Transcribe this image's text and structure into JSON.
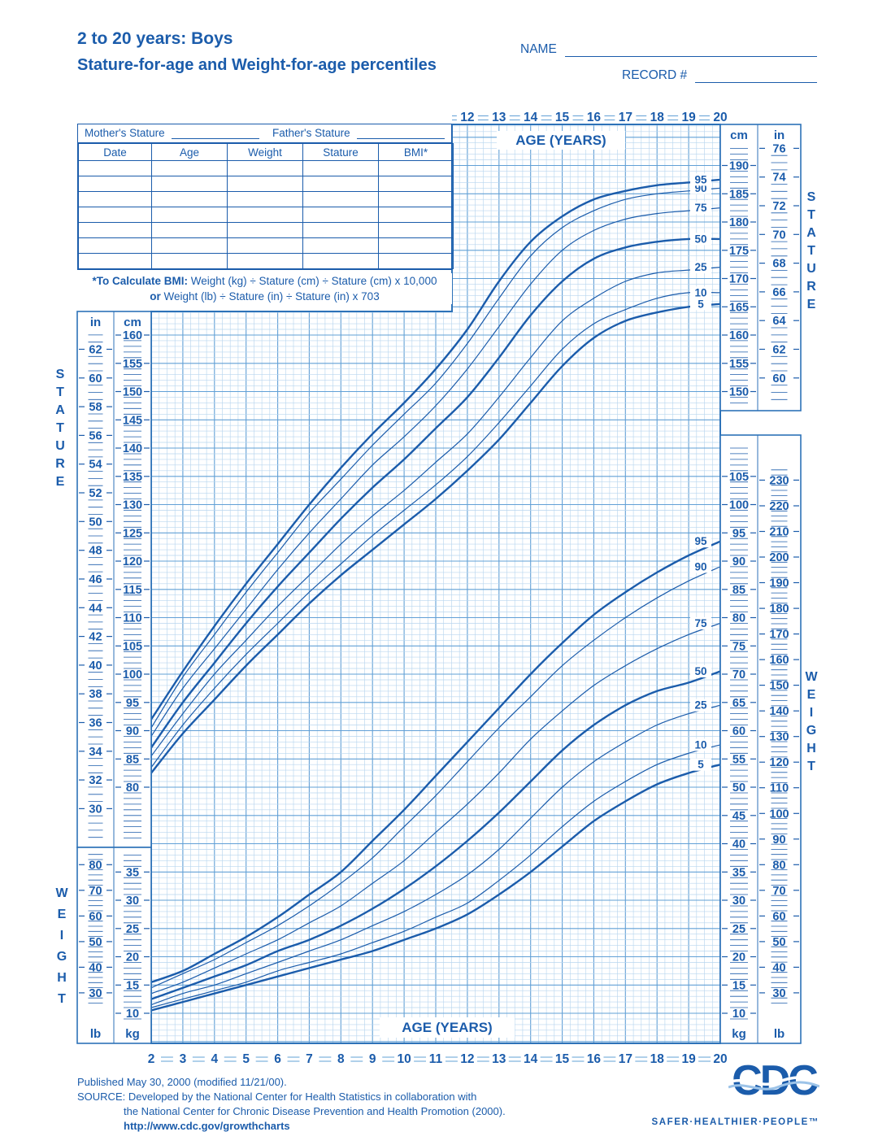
{
  "header": {
    "title_line1": "2 to 20 years: Boys",
    "title_line2": "Stature-for-age and Weight-for-age percentiles",
    "name_label": "NAME",
    "name_value": "",
    "record_label": "RECORD #",
    "record_value": ""
  },
  "patient_table": {
    "mother_stature_label": "Mother's Stature",
    "mother_stature_value": "",
    "father_stature_label": "Father's Stature",
    "father_stature_value": "",
    "columns": [
      "Date",
      "Age",
      "Weight",
      "Stature",
      "BMI*"
    ],
    "empty_rows": 7
  },
  "bmi_note": {
    "line1_bold": "*To Calculate BMI:",
    "line1_rest": " Weight (kg) ÷ Stature (cm) ÷ Stature (cm) x 10,000",
    "line2_bold": "or",
    "line2_rest": " Weight (lb) ÷ Stature (in) ÷ Stature (in) x 703"
  },
  "axis_labels": {
    "age_title_top": "AGE (YEARS)",
    "age_title_bottom": "AGE (YEARS)",
    "stature_vertical": "STATURE",
    "weight_vertical": "WEIGHT",
    "unit_cm": "cm",
    "unit_in": "in",
    "unit_kg": "kg",
    "unit_lb": "lb"
  },
  "axes": {
    "age_top_ticks": [
      12,
      13,
      14,
      15,
      16,
      17,
      18,
      19,
      20
    ],
    "age_bottom_ticks": [
      2,
      3,
      4,
      5,
      6,
      7,
      8,
      9,
      10,
      11,
      12,
      13,
      14,
      15,
      16,
      17,
      18,
      19,
      20
    ],
    "stature_right_cm": [
      190,
      185,
      180,
      175,
      170,
      165,
      160,
      155,
      150
    ],
    "stature_right_in": [
      76,
      74,
      72,
      70,
      68,
      66,
      64,
      62,
      60
    ],
    "stature_left_cm": [
      160,
      155,
      150,
      145,
      140,
      135,
      130,
      125,
      120,
      115,
      110,
      105,
      100,
      95,
      90,
      85,
      80
    ],
    "stature_left_in": [
      62,
      60,
      58,
      56,
      54,
      52,
      50,
      48,
      46,
      44,
      42,
      40,
      38,
      36,
      34,
      32,
      30
    ],
    "weight_right_kg": [
      105,
      100,
      95,
      90,
      85,
      80,
      75,
      70,
      65,
      60,
      55,
      50,
      45,
      40,
      35,
      30,
      25,
      20,
      15,
      10
    ],
    "weight_right_lb": [
      230,
      220,
      210,
      200,
      190,
      180,
      170,
      160,
      150,
      140,
      130,
      120,
      110,
      100,
      90,
      80,
      70,
      60,
      50,
      40,
      30
    ],
    "weight_left_lb": [
      80,
      70,
      60,
      50,
      40,
      30
    ],
    "weight_left_kg": [
      35,
      30,
      25,
      20,
      15,
      10
    ]
  },
  "chart_data": [
    {
      "type": "line",
      "title": "Stature-for-age percentiles, boys 2 to 20 years",
      "xlabel": "AGE (YEARS)",
      "ylabel": "Stature",
      "y_units": [
        "cm",
        "in"
      ],
      "x_range": [
        2,
        20
      ],
      "y_range_cm": [
        80,
        190
      ],
      "grid": true,
      "x": [
        2,
        3,
        4,
        5,
        6,
        7,
        8,
        9,
        10,
        11,
        12,
        13,
        14,
        15,
        16,
        17,
        18,
        19,
        20
      ],
      "series": [
        {
          "label": "5",
          "name": "5th percentile",
          "values": [
            82.5,
            89.5,
            95.5,
            101.5,
            107,
            112.5,
            117.5,
            122,
            126.5,
            131,
            136,
            141.5,
            148,
            154.5,
            159.5,
            162.5,
            164,
            165,
            165.5
          ]
        },
        {
          "label": "10",
          "name": "10th percentile",
          "values": [
            83.5,
            91,
            97.5,
            103.5,
            109,
            114.5,
            119.5,
            124.5,
            129,
            133.5,
            138.5,
            144.5,
            151,
            157.5,
            162,
            164.5,
            166.5,
            167.5,
            167.5
          ]
        },
        {
          "label": "25",
          "name": "25th percentile",
          "values": [
            85.5,
            93,
            100,
            106,
            112,
            117.5,
            123,
            128,
            132.5,
            137.5,
            142.5,
            149,
            156,
            162.5,
            166.5,
            169.5,
            171,
            171.5,
            172
          ]
        },
        {
          "label": "50",
          "name": "50th percentile",
          "values": [
            87,
            95,
            102,
            109,
            115.5,
            121.5,
            127.5,
            133,
            138,
            143.5,
            149,
            156,
            163.5,
            169.5,
            173.5,
            175.5,
            176.5,
            177,
            177
          ]
        },
        {
          "label": "75",
          "name": "75th percentile",
          "values": [
            89,
            97.5,
            104.5,
            111.5,
            118.5,
            125,
            131,
            137,
            142,
            147.5,
            154,
            161.5,
            169,
            175,
            178.5,
            180.5,
            181.5,
            182,
            182.5
          ]
        },
        {
          "label": "90",
          "name": "90th percentile",
          "values": [
            90.5,
            99.5,
            107,
            114.5,
            121.5,
            128.5,
            134.5,
            140.5,
            146,
            151.5,
            158.5,
            166.5,
            174,
            179,
            182,
            184,
            185,
            185.5,
            186
          ]
        },
        {
          "label": "95",
          "name": "95th percentile",
          "values": [
            92,
            100.5,
            108.5,
            116,
            123,
            130,
            136.5,
            142.5,
            148,
            154,
            161,
            169.5,
            176.5,
            181,
            184,
            185.5,
            186.5,
            187,
            187.5
          ]
        }
      ]
    },
    {
      "type": "line",
      "title": "Weight-for-age percentiles, boys 2 to 20 years",
      "xlabel": "AGE (YEARS)",
      "ylabel": "Weight",
      "y_units": [
        "kg",
        "lb"
      ],
      "x_range": [
        2,
        20
      ],
      "y_range_kg": [
        10,
        105
      ],
      "grid": true,
      "x": [
        2,
        3,
        4,
        5,
        6,
        7,
        8,
        9,
        10,
        11,
        12,
        13,
        14,
        15,
        16,
        17,
        18,
        19,
        20
      ],
      "series": [
        {
          "label": "5",
          "name": "5th percentile",
          "values": [
            10.5,
            12,
            13.5,
            15,
            16.5,
            18,
            19.5,
            21,
            23,
            25,
            27.5,
            31,
            35,
            39.5,
            44,
            47.5,
            50.5,
            52.5,
            54
          ]
        },
        {
          "label": "10",
          "name": "10th percentile",
          "values": [
            11,
            12.5,
            14,
            15.5,
            17.5,
            19,
            20.5,
            22.5,
            24.5,
            27,
            29.5,
            33.5,
            38,
            43,
            47.5,
            51,
            54,
            56,
            57.5
          ]
        },
        {
          "label": "25",
          "name": "25th percentile",
          "values": [
            11.5,
            13.5,
            15,
            17,
            19,
            21,
            23,
            25.5,
            28,
            31,
            34.5,
            39,
            44.5,
            50,
            54.5,
            58,
            61,
            63,
            64.5
          ]
        },
        {
          "label": "50",
          "name": "50th percentile",
          "values": [
            12.5,
            14.5,
            16.5,
            18.5,
            21,
            23,
            25.5,
            28.5,
            32,
            36,
            40.5,
            45.5,
            51,
            56.5,
            61,
            64.5,
            67,
            68.5,
            70.5
          ]
        },
        {
          "label": "75",
          "name": "75th percentile",
          "values": [
            13.5,
            15.5,
            18,
            20.5,
            23,
            26,
            29,
            33,
            37,
            42,
            47,
            52.5,
            58.5,
            63.5,
            68,
            71.5,
            74.5,
            77,
            79
          ]
        },
        {
          "label": "90",
          "name": "90th percentile",
          "values": [
            14.5,
            17,
            19.5,
            22.5,
            25.5,
            29,
            33,
            37.5,
            43,
            48.5,
            54.5,
            60.5,
            66,
            71.5,
            76,
            80,
            83.5,
            86.5,
            89
          ]
        },
        {
          "label": "95",
          "name": "95th percentile",
          "values": [
            15.5,
            17.5,
            20.5,
            23.5,
            27,
            31,
            35,
            40.5,
            46,
            52,
            58,
            64,
            70,
            75.5,
            80.5,
            84.5,
            88,
            91,
            93.5
          ]
        }
      ]
    }
  ],
  "footer": {
    "published": "Published May 30, 2000 (modified 11/21/00).",
    "source_line1": "SOURCE: Developed by the National Center for Health Statistics in collaboration with",
    "source_line2": "the National Center for Chronic Disease Prevention and Health Promotion (2000).",
    "url": "http://www.cdc.gov/growthcharts"
  },
  "logo": {
    "text": "CDC",
    "tagline": "SAFER·HEALTHIER·PEOPLE™"
  },
  "colors": {
    "ink": "#1b5cab",
    "grid_major": "#62a0d6",
    "grid_minor": "#b9d6ef",
    "box_border": "#2d72b8",
    "background": "#ffffff"
  }
}
